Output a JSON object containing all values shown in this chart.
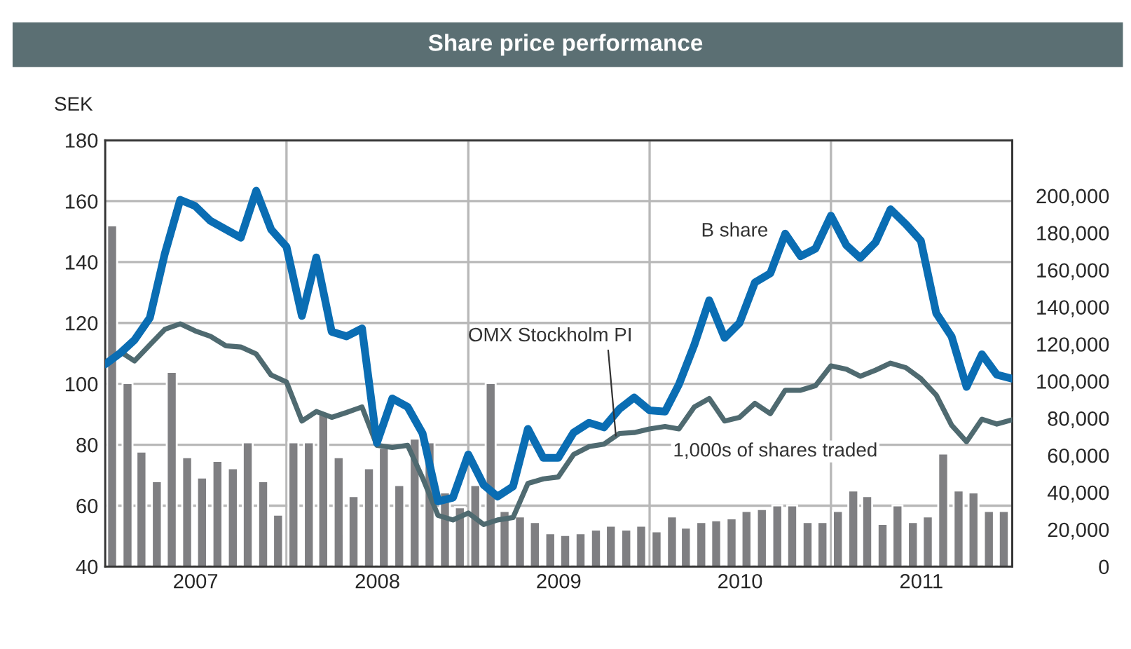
{
  "chart_data": {
    "type": "line",
    "title": "Share price performance",
    "ylabel": "SEK",
    "ylim": [
      40,
      180
    ],
    "yticks": [
      40,
      60,
      80,
      100,
      120,
      140,
      160,
      180
    ],
    "y2lim": [
      0,
      230000
    ],
    "y2ticks": [
      {
        "value": 0,
        "label": "0"
      },
      {
        "value": 20000,
        "label": "20,000"
      },
      {
        "value": 40000,
        "label": "40,000"
      },
      {
        "value": 60000,
        "label": "60,000"
      },
      {
        "value": 80000,
        "label": "80,000"
      },
      {
        "value": 100000,
        "label": "100,000"
      },
      {
        "value": 120000,
        "label": "120,000"
      },
      {
        "value": 140000,
        "label": "140,000"
      },
      {
        "value": 160000,
        "label": "160,000"
      },
      {
        "value": 180000,
        "label": "180,000"
      },
      {
        "value": 200000,
        "label": "200,000"
      }
    ],
    "xlim": [
      "2007-01-01",
      "2012-01-01"
    ],
    "xticks": [
      {
        "value": "2007-07-02",
        "label": "2007"
      },
      {
        "value": "2008-01-01",
        "label": null
      },
      {
        "value": "2008-07-02",
        "label": "2008"
      },
      {
        "value": "2009-01-01",
        "label": null
      },
      {
        "value": "2009-07-02",
        "label": "2009"
      },
      {
        "value": "2010-01-01",
        "label": null
      },
      {
        "value": "2010-07-02",
        "label": "2010"
      },
      {
        "value": "2011-01-01",
        "label": null
      },
      {
        "value": "2011-07-02",
        "label": "2011"
      }
    ],
    "grid": true,
    "legend": false,
    "annotations": [
      "B share",
      {
        "text": "OMX Stockholm PI",
        "x": "2009-10-25",
        "y": 83
      },
      "1,000s of shares traded"
    ],
    "series": [
      {
        "type": "bar",
        "axis": "y2",
        "color": "#7f7f82",
        "x": [
          "2007-01-15",
          "2007-02-15",
          "2007-03-15",
          "2007-04-15",
          "2007-05-15",
          "2007-06-15",
          "2007-07-15",
          "2007-08-15",
          "2007-09-15",
          "2007-10-15",
          "2007-11-15",
          "2007-12-15",
          "2008-01-15",
          "2008-02-15",
          "2008-03-15",
          "2008-04-15",
          "2008-05-15",
          "2008-06-15",
          "2008-07-15",
          "2008-08-15",
          "2008-09-15",
          "2008-10-15",
          "2008-11-15",
          "2008-12-15",
          "2009-01-15",
          "2009-02-15",
          "2009-03-15",
          "2009-04-15",
          "2009-05-15",
          "2009-06-15",
          "2009-07-15",
          "2009-08-15",
          "2009-09-15",
          "2009-10-15",
          "2009-11-15",
          "2009-12-15",
          "2010-01-15",
          "2010-02-15",
          "2010-03-15",
          "2010-04-15",
          "2010-05-15",
          "2010-06-15",
          "2010-07-15",
          "2010-08-15",
          "2010-09-15",
          "2010-10-15",
          "2010-11-15",
          "2010-12-15",
          "2011-01-15",
          "2011-02-15",
          "2011-03-15",
          "2011-04-15",
          "2011-05-15",
          "2011-06-15",
          "2011-07-15",
          "2011-08-15",
          "2011-09-15",
          "2011-10-15",
          "2011-11-15",
          "2011-12-15"
        ],
        "values": [
          184000,
          99000,
          62000,
          46000,
          105000,
          59000,
          48000,
          57000,
          53000,
          67000,
          46000,
          28000,
          67000,
          67000,
          82000,
          59000,
          38000,
          53000,
          64000,
          44000,
          69000,
          67000,
          40000,
          32000,
          44000,
          99000,
          30000,
          27000,
          24000,
          18000,
          17000,
          18000,
          20000,
          22000,
          20000,
          22000,
          19000,
          27000,
          21000,
          24000,
          25000,
          26000,
          30000,
          31000,
          33000,
          33000,
          24000,
          24000,
          30000,
          41000,
          38000,
          23000,
          33000,
          24000,
          27000,
          61000,
          41000,
          40000,
          30000,
          30000
        ]
      },
      {
        "type": "line",
        "color": "#4f6a70",
        "values": [
          106.4,
          110.5,
          107.5,
          112.8,
          117.9,
          119.7,
          117.4,
          115.6,
          112.5,
          112.1,
          109.8,
          102.9,
          100.6,
          87.8,
          90.9,
          89,
          90.6,
          92.4,
          79.8,
          79.1,
          79.8,
          69.1,
          56.8,
          55.3,
          57.6,
          53.8,
          55.3,
          56.1,
          67.3,
          68.8,
          69.4,
          76.8,
          79.4,
          80.2,
          83.7,
          84,
          85.2,
          86,
          85.2,
          92.4,
          95.2,
          87.8,
          89,
          93.6,
          90.2,
          97.9,
          97.9,
          99.4,
          105.9,
          104.8,
          102.5,
          104.5,
          106.8,
          105.3,
          101.7,
          96.3,
          86.4,
          81,
          88.4,
          86.8,
          88.2
        ]
      },
      {
        "type": "line",
        "color": "#0a6db3",
        "values": [
          106.4,
          110.2,
          114.4,
          121.7,
          142.7,
          160.4,
          158.4,
          153.5,
          150.7,
          148,
          163.4,
          150.7,
          145,
          122.3,
          141.5,
          117.1,
          115.6,
          118.2,
          80.6,
          95.2,
          92.4,
          83.7,
          61.4,
          62.6,
          76.8,
          66.8,
          63,
          66.3,
          85.2,
          75.7,
          75.7,
          84,
          87.2,
          85.7,
          91.7,
          95.5,
          91.3,
          90.9,
          99.8,
          112.8,
          127.4,
          115.1,
          120,
          133.3,
          136.3,
          149.3,
          141.9,
          144.4,
          155.2,
          145.5,
          141.3,
          146.5,
          157.3,
          152.4,
          147,
          123.2,
          115.5,
          99,
          109.7,
          103,
          101.7
        ]
      }
    ],
    "x": [
      "2007-01",
      "2007-02",
      "2007-03",
      "2007-04",
      "2007-05",
      "2007-06",
      "2007-07",
      "2007-08",
      "2007-09",
      "2007-10",
      "2007-11",
      "2007-12",
      "2008-01",
      "2008-02",
      "2008-03",
      "2008-04",
      "2008-05",
      "2008-06",
      "2008-07",
      "2008-08",
      "2008-09",
      "2008-10",
      "2008-11",
      "2008-12",
      "2009-01",
      "2009-02",
      "2009-03",
      "2009-04",
      "2009-05",
      "2009-06",
      "2009-07",
      "2009-08",
      "2009-09",
      "2009-10",
      "2009-11",
      "2009-12",
      "2010-01",
      "2010-02",
      "2010-03",
      "2010-04",
      "2010-05",
      "2010-06",
      "2010-07",
      "2010-08",
      "2010-09",
      "2010-10",
      "2010-11",
      "2010-12",
      "2011-01",
      "2011-02",
      "2011-03",
      "2011-04",
      "2011-05",
      "2011-06",
      "2011-07",
      "2011-08",
      "2011-09",
      "2011-10",
      "2011-11",
      "2011-12",
      "2012-01"
    ]
  }
}
